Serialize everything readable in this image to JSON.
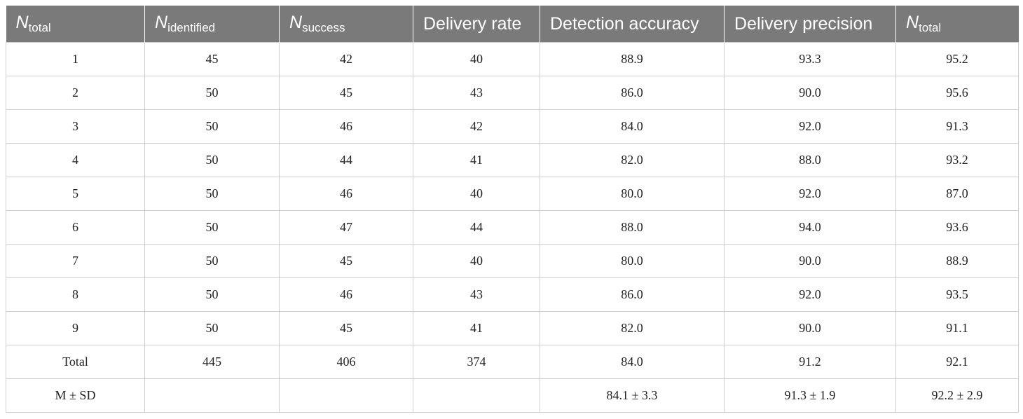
{
  "table": {
    "headers": [
      {
        "main": "N",
        "sub": "total"
      },
      {
        "main": "N",
        "sub": "identified"
      },
      {
        "main": "N",
        "sub": "success"
      },
      {
        "text": "Delivery rate"
      },
      {
        "text": "Detection accuracy"
      },
      {
        "text": "Delivery precision"
      },
      {
        "main": "N",
        "sub": "total"
      }
    ],
    "rows": [
      [
        "1",
        "45",
        "42",
        "40",
        "88.9",
        "93.3",
        "95.2"
      ],
      [
        "2",
        "50",
        "45",
        "43",
        "86.0",
        "90.0",
        "95.6"
      ],
      [
        "3",
        "50",
        "46",
        "42",
        "84.0",
        "92.0",
        "91.3"
      ],
      [
        "4",
        "50",
        "44",
        "41",
        "82.0",
        "88.0",
        "93.2"
      ],
      [
        "5",
        "50",
        "46",
        "40",
        "80.0",
        "92.0",
        "87.0"
      ],
      [
        "6",
        "50",
        "47",
        "44",
        "88.0",
        "94.0",
        "93.6"
      ],
      [
        "7",
        "50",
        "45",
        "40",
        "80.0",
        "90.0",
        "88.9"
      ],
      [
        "8",
        "50",
        "46",
        "43",
        "86.0",
        "92.0",
        "93.5"
      ],
      [
        "9",
        "50",
        "45",
        "41",
        "82.0",
        "90.0",
        "91.1"
      ],
      [
        "Total",
        "445",
        "406",
        "374",
        "84.0",
        "91.2",
        "92.1"
      ],
      [
        "M ± SD",
        "",
        "",
        "",
        "84.1 ± 3.3",
        "91.3 ± 1.9",
        "92.2 ± 2.9"
      ]
    ]
  },
  "colors": {
    "header_bg": "#7a7a7a",
    "header_text": "#ffffff",
    "border": "#cfcfcf"
  }
}
